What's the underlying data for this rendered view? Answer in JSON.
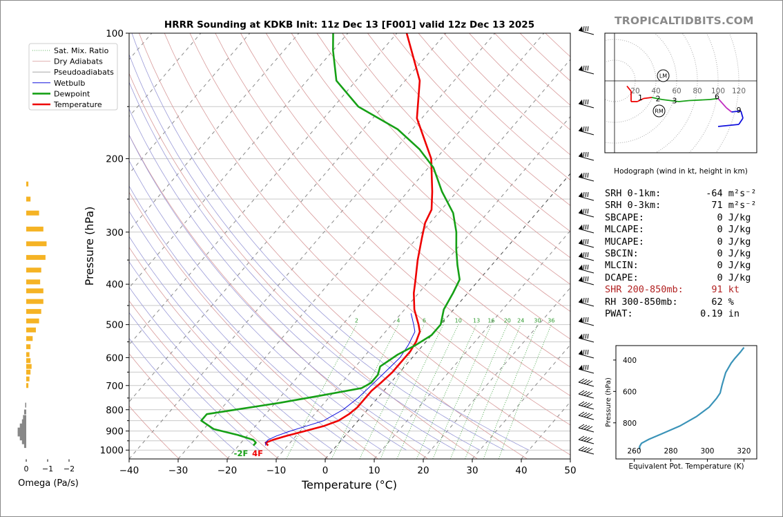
{
  "brand": "TROPICALTIDBITS.COM",
  "chart_data": [
    {
      "type": "line",
      "title": "HRRR Sounding at KDKB Init: 11z Dec 13 [F001] valid 12z Dec 13 2025",
      "xlabel": "Temperature (°C)",
      "ylabel": "Pressure (hPa)",
      "x_ticks": [
        "−40",
        "−30",
        "−20",
        "−10",
        "0",
        "10",
        "20",
        "30",
        "40",
        "50"
      ],
      "y_ticks": [
        "100",
        "200",
        "300",
        "400",
        "500",
        "600",
        "700",
        "800",
        "900",
        "1000"
      ],
      "xlim": [
        -40,
        50
      ],
      "ylim": [
        1050,
        100
      ],
      "yscale": "log",
      "legend": [
        "Sat. Mix. Ratio",
        "Dry Adiabats",
        "Pseudoadiabats",
        "Wetbulb",
        "Dewpoint",
        "Temperature"
      ],
      "legend_position": "top-left",
      "mixing_ratio_labels": [
        "2",
        "4",
        "6",
        "8",
        "10",
        "13",
        "16",
        "20",
        "24",
        "30",
        "36"
      ],
      "surface_labels": {
        "dewpoint": "-2F",
        "temperature": "4F"
      },
      "series": [
        {
          "name": "Temperature",
          "color": "#ee0000",
          "points": [
            [
              -14,
              975
            ],
            [
              -15,
              960
            ],
            [
              -14,
              945
            ],
            [
              -12,
              925
            ],
            [
              -9,
              900
            ],
            [
              -6,
              875
            ],
            [
              -4,
              850
            ],
            [
              -3,
              820
            ],
            [
              -2.5,
              790
            ],
            [
              -2.5,
              750
            ],
            [
              -2.5,
              720
            ],
            [
              -2,
              690
            ],
            [
              -1.5,
              650
            ],
            [
              -1.5,
              620
            ],
            [
              -1.5,
              580
            ],
            [
              -2,
              550
            ],
            [
              -3,
              520
            ],
            [
              -4.5,
              500
            ],
            [
              -8,
              460
            ],
            [
              -11,
              420
            ],
            [
              -13,
              390
            ],
            [
              -16,
              350
            ],
            [
              -19,
              310
            ],
            [
              -21,
              285
            ],
            [
              -22,
              265
            ],
            [
              -25,
              240
            ],
            [
              -31,
              200
            ],
            [
              -41,
              160
            ],
            [
              -47,
              130
            ],
            [
              -54,
              110
            ],
            [
              -58,
              100
            ]
          ]
        },
        {
          "name": "Wetbulb",
          "color": "#1010dd",
          "points": [
            [
              -14.5,
              975
            ],
            [
              -15,
              960
            ],
            [
              -15,
              945
            ],
            [
              -14,
              925
            ],
            [
              -12,
              900
            ],
            [
              -9.5,
              875
            ],
            [
              -7,
              850
            ],
            [
              -5,
              800
            ],
            [
              -4,
              750
            ],
            [
              -3.5,
              700
            ],
            [
              -3,
              650
            ],
            [
              -2.5,
              600
            ],
            [
              -3,
              560
            ],
            [
              -4,
              520
            ],
            [
              -5.5,
              500
            ],
            [
              -8,
              470
            ]
          ]
        },
        {
          "name": "Dewpoint",
          "color": "#16a016",
          "points": [
            [
              -17,
              975
            ],
            [
              -17,
              960
            ],
            [
              -18,
              945
            ],
            [
              -22,
              920
            ],
            [
              -28,
              890
            ],
            [
              -32,
              850
            ],
            [
              -32,
              820
            ],
            [
              -27,
              800
            ],
            [
              -19,
              770
            ],
            [
              -12,
              740
            ],
            [
              -5,
              710
            ],
            [
              -4,
              690
            ],
            [
              -4,
              660
            ],
            [
              -5,
              630
            ],
            [
              -3.5,
              590
            ],
            [
              -1.5,
              560
            ],
            [
              0,
              530
            ],
            [
              0,
              500
            ],
            [
              -2,
              460
            ],
            [
              -3,
              420
            ],
            [
              -4,
              390
            ],
            [
              -7,
              360
            ],
            [
              -10,
              330
            ],
            [
              -13,
              300
            ],
            [
              -17,
              270
            ],
            [
              -23,
              240
            ],
            [
              -29,
              210
            ],
            [
              -35,
              190
            ],
            [
              -43,
              170
            ],
            [
              -55,
              150
            ],
            [
              -64,
              130
            ],
            [
              -70,
              110
            ],
            [
              -73,
              100
            ]
          ]
        }
      ]
    },
    {
      "type": "line",
      "title": "",
      "xlabel": "Omega (Pa/s)",
      "ylabel": "",
      "x_ticks": [
        "0",
        "−1",
        "−2"
      ],
      "values_by_pressure": [
        [
          975,
          0.1
        ],
        [
          955,
          0.2
        ],
        [
          935,
          0.3
        ],
        [
          915,
          0.4
        ],
        [
          895,
          0.4
        ],
        [
          875,
          0.3
        ],
        [
          855,
          0.2
        ],
        [
          835,
          0.15
        ],
        [
          810,
          0.1
        ],
        [
          780,
          0.05
        ],
        [
          700,
          -0.1
        ],
        [
          675,
          -0.15
        ],
        [
          650,
          -0.2
        ],
        [
          630,
          -0.25
        ],
        [
          610,
          -0.2
        ],
        [
          590,
          -0.15
        ],
        [
          565,
          -0.2
        ],
        [
          540,
          -0.3
        ],
        [
          515,
          -0.45
        ],
        [
          490,
          -0.6
        ],
        [
          465,
          -0.7
        ],
        [
          440,
          -0.8
        ],
        [
          415,
          -0.8
        ],
        [
          395,
          -0.65
        ],
        [
          370,
          -0.7
        ],
        [
          345,
          -0.9
        ],
        [
          320,
          -0.95
        ],
        [
          295,
          -0.8
        ],
        [
          270,
          -0.6
        ],
        [
          250,
          -0.2
        ],
        [
          230,
          -0.1
        ]
      ]
    },
    {
      "type": "line",
      "title": "",
      "xlabel": "Hodograph (wind in kt, height in km)",
      "x_ticks": [
        "20",
        "40",
        "60",
        "80",
        "100",
        "120"
      ],
      "height_labels": [
        "1",
        "2",
        "3",
        "6",
        "9"
      ],
      "markers": [
        "LM",
        "RM"
      ],
      "points": [
        [
          12,
          -5
        ],
        [
          16,
          -10
        ],
        [
          16,
          -20
        ],
        [
          22,
          -20
        ],
        [
          28,
          -17
        ],
        [
          36,
          -16
        ],
        [
          46,
          -18
        ],
        [
          54,
          -19
        ],
        [
          62,
          -20
        ],
        [
          72,
          -19
        ],
        [
          92,
          -18
        ],
        [
          100,
          -17
        ],
        [
          108,
          -26
        ],
        [
          113,
          -30
        ],
        [
          122,
          -29
        ],
        [
          124,
          -36
        ],
        [
          120,
          -42
        ],
        [
          100,
          -44
        ]
      ]
    },
    {
      "type": "line",
      "title": "",
      "xlabel": "Equivalent Pot. Temperature (K)",
      "ylabel": "Pressure (hPa)",
      "x_ticks": [
        "260",
        "280",
        "300",
        "320"
      ],
      "y_ticks": [
        "400",
        "600",
        "800"
      ],
      "points": [
        [
          263,
          970
        ],
        [
          263,
          950
        ],
        [
          264,
          930
        ],
        [
          268,
          905
        ],
        [
          275,
          870
        ],
        [
          285,
          820
        ],
        [
          294,
          760
        ],
        [
          301,
          700
        ],
        [
          305,
          645
        ],
        [
          307,
          610
        ],
        [
          308,
          560
        ],
        [
          309,
          520
        ],
        [
          310,
          480
        ],
        [
          313,
          420
        ],
        [
          315,
          390
        ],
        [
          318,
          350
        ],
        [
          320,
          320
        ]
      ]
    }
  ],
  "params": [
    {
      "label": "SRH 0-1km:",
      "value": "-64",
      "unit": "m²s⁻²"
    },
    {
      "label": "SRH 0-3km:",
      "value": "71",
      "unit": "m²s⁻²"
    },
    {
      "label": "SBCAPE:",
      "value": "0",
      "unit": "J/kg"
    },
    {
      "label": "MLCAPE:",
      "value": "0",
      "unit": "J/kg"
    },
    {
      "label": "MUCAPE:",
      "value": "0",
      "unit": "J/kg"
    },
    {
      "label": "SBCIN:",
      "value": "0",
      "unit": "J/kg"
    },
    {
      "label": "MLCIN:",
      "value": "0",
      "unit": "J/kg"
    },
    {
      "label": "DCAPE:",
      "value": "0",
      "unit": "J/kg"
    },
    {
      "label": "SHR 200-850mb:",
      "value": "91",
      "unit": "kt",
      "highlight": true
    },
    {
      "label": "RH 300-850mb:",
      "value": "62",
      "unit": "%"
    },
    {
      "label": "PWAT:",
      "value": "0.19",
      "unit": "in"
    }
  ],
  "colors": {
    "temperature": "#ee0000",
    "dewpoint": "#16a016",
    "wetbulb": "#1010dd",
    "omega": "#f5b324",
    "theta_e": "#3a93b8",
    "brand": "#8a8a8a"
  }
}
